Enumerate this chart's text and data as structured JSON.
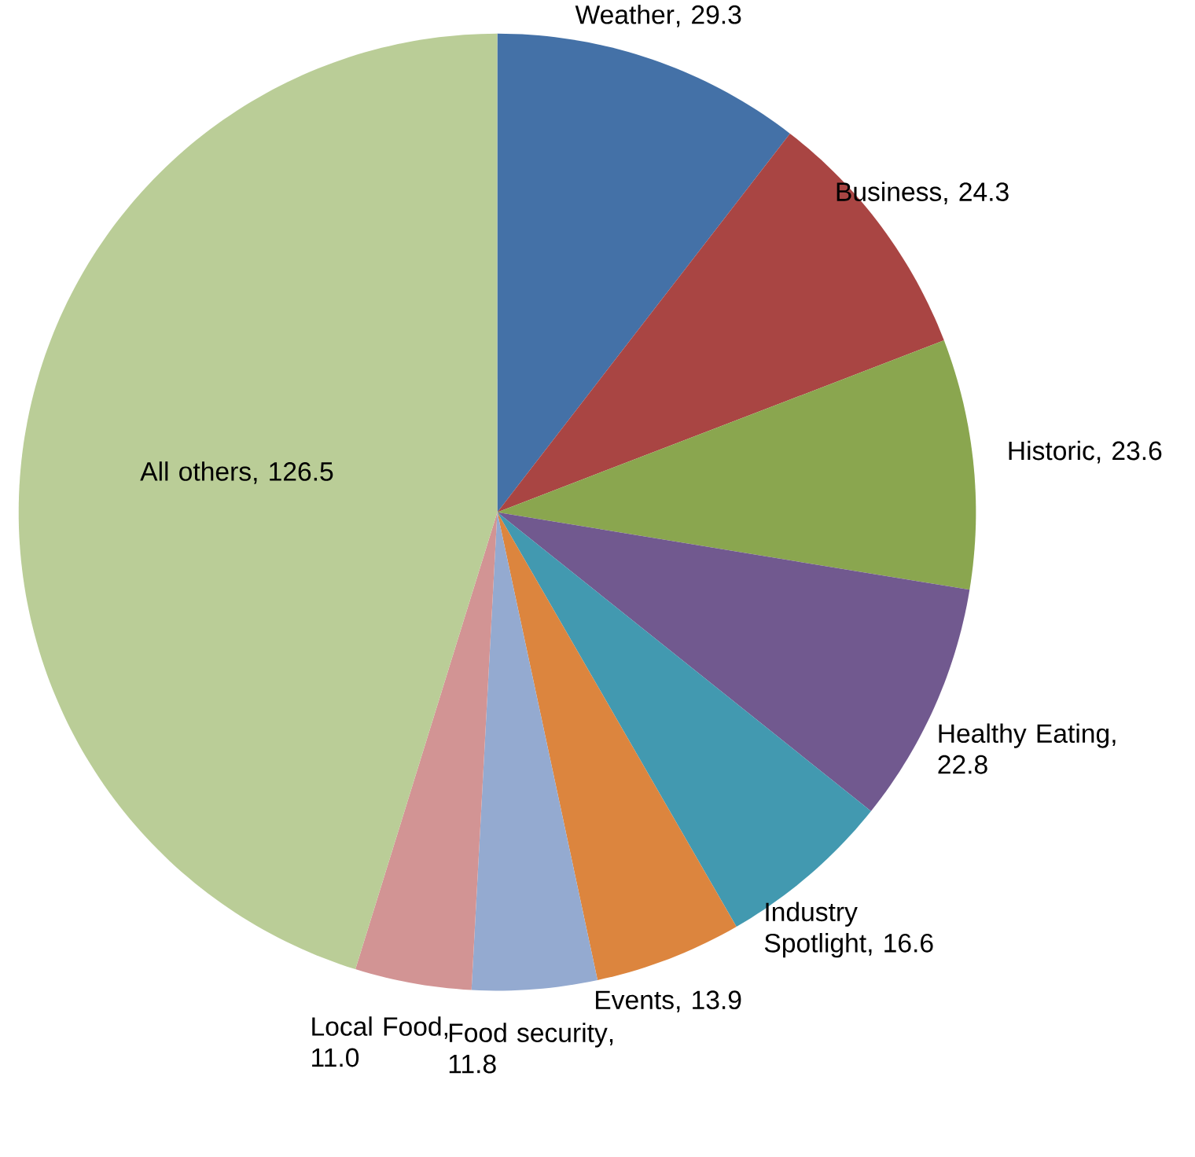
{
  "chart_data": {
    "type": "pie",
    "categories": [
      "Weather",
      "Business",
      "Historic",
      "Healthy Eating",
      "Industry Spotlight",
      "Events",
      "Food security",
      "Local Food",
      "All others"
    ],
    "values": [
      29.3,
      24.3,
      23.6,
      22.8,
      16.6,
      13.9,
      11.8,
      11.0,
      126.5
    ],
    "value_labels": [
      ", 29.3",
      ", 24.3",
      ", 23.6",
      ", 22.8",
      ", 16.6",
      ", 13.9",
      ", 11.8",
      ", 11.0",
      ", 126.5"
    ],
    "colors": [
      "#4471a7",
      "#a94543",
      "#8aa64f",
      "#71598f",
      "#4299b0",
      "#dc853e",
      "#94aad0",
      "#d29494",
      "#bacd97"
    ]
  }
}
